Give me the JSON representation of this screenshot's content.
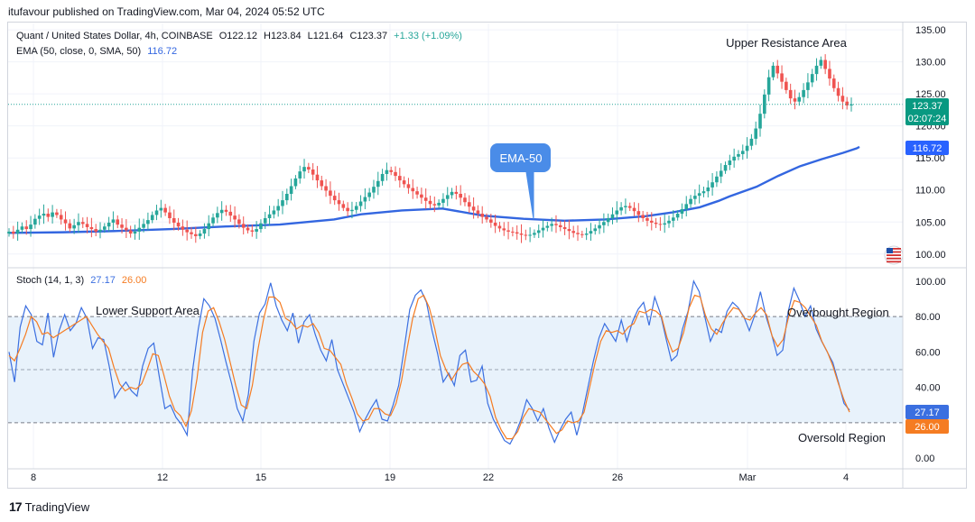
{
  "header": {
    "published": "itufavour published on TradingView.com, Mar 04, 2024 05:52 UTC"
  },
  "legend": {
    "symbol": "Quant / United States Dollar, 4h, COINBASE",
    "open": "O122.12",
    "high": "H123.84",
    "low": "L121.64",
    "close": "C123.37",
    "change": "+1.33 (+1.09%)",
    "ema_label": "EMA (50, close, 0, SMA, 50)",
    "ema_value": "116.72",
    "stoch_label": "Stoch (14, 1, 3)",
    "stoch_k": "27.17",
    "stoch_d": "26.00"
  },
  "annotations": {
    "upper_resistance": "Upper Resistance Area",
    "ema_callout": "EMA-50",
    "lower_support": "Lower Support Area",
    "overbought": "Overbought Region",
    "oversold": "Oversold Region"
  },
  "price_badges": {
    "last": "123.37",
    "countdown": "02:07:24",
    "ema": "116.72",
    "k": "27.17",
    "d": "26.00"
  },
  "footer": {
    "brand": "TradingView",
    "logo": "17"
  },
  "colors": {
    "up": "#26a69a",
    "down": "#ef5350",
    "ema": "#3366e0",
    "k": "#3b6fe0",
    "d": "#f57c22",
    "band": "#e8f2fb"
  },
  "chart_data": [
    {
      "type": "candlestick",
      "title": "Quant / United States Dollar, 4h, COINBASE",
      "x_ticks": [
        "8",
        "12",
        "15",
        "19",
        "22",
        "26",
        "Mar",
        "4"
      ],
      "y_ticks": [
        "100.00",
        "105.00",
        "110.00",
        "115.00",
        "120.00",
        "125.00",
        "130.00",
        "135.00"
      ],
      "ylim": [
        98,
        136
      ],
      "last_close": 123.37,
      "ema50_last": 116.72,
      "ema50_path": [
        [
          0,
          103.3
        ],
        [
          20,
          103.4
        ],
        [
          40,
          103.6
        ],
        [
          60,
          103.9
        ],
        [
          80,
          104.3
        ],
        [
          100,
          104.6
        ],
        [
          120,
          105.4
        ],
        [
          130,
          106.2
        ],
        [
          145,
          106.8
        ],
        [
          160,
          107.1
        ],
        [
          175,
          106.0
        ],
        [
          190,
          105.5
        ],
        [
          205,
          105.2
        ],
        [
          220,
          105.4
        ],
        [
          235,
          105.9
        ],
        [
          245,
          106.5
        ],
        [
          255,
          107.3
        ],
        [
          262,
          108.3
        ],
        [
          266,
          109.0
        ],
        [
          276,
          110.5
        ],
        [
          284,
          112.2
        ],
        [
          292,
          113.7
        ],
        [
          300,
          114.8
        ],
        [
          308,
          115.8
        ],
        [
          313,
          116.5
        ],
        [
          314,
          116.72
        ]
      ],
      "closes": [
        103.5,
        103.2,
        103.8,
        104.3,
        103.9,
        104.6,
        105.5,
        106.0,
        106.3,
        105.8,
        106.5,
        106.1,
        105.4,
        104.8,
        104.0,
        104.5,
        105.0,
        104.7,
        104.2,
        103.9,
        103.5,
        103.8,
        104.3,
        104.9,
        105.4,
        104.6,
        104.1,
        103.7,
        103.2,
        103.5,
        104.1,
        104.7,
        105.3,
        106.1,
        106.8,
        107.2,
        106.5,
        105.6,
        104.9,
        104.3,
        103.8,
        103.4,
        103.1,
        102.8,
        103.2,
        103.9,
        104.8,
        105.7,
        106.4,
        106.9,
        106.6,
        106.0,
        105.4,
        104.7,
        104.1,
        103.7,
        103.5,
        103.9,
        104.8,
        105.6,
        106.2,
        106.8,
        107.5,
        108.4,
        109.4,
        110.6,
        111.8,
        112.9,
        113.6,
        113.2,
        112.4,
        111.5,
        110.6,
        109.9,
        109.1,
        108.4,
        107.8,
        107.2,
        106.7,
        106.9,
        107.5,
        108.2,
        108.9,
        109.6,
        110.5,
        111.4,
        112.5,
        113.1,
        112.8,
        112.2,
        111.5,
        110.9,
        110.3,
        109.8,
        109.3,
        108.8,
        108.3,
        107.8,
        107.6,
        108.0,
        108.6,
        109.2,
        109.7,
        109.4,
        108.8,
        108.1,
        107.4,
        106.8,
        106.3,
        105.8,
        105.4,
        104.9,
        104.4,
        104.0,
        103.7,
        103.5,
        103.4,
        103.2,
        103.0,
        102.9,
        103.0,
        103.3,
        103.7,
        104.1,
        104.4,
        104.7,
        104.5,
        104.2,
        103.9,
        103.6,
        103.3,
        103.1,
        103.0,
        103.2,
        103.6,
        104.0,
        104.5,
        105.0,
        105.6,
        106.2,
        106.8,
        107.3,
        107.5,
        107.2,
        106.7,
        106.1,
        105.6,
        105.2,
        104.9,
        104.7,
        104.6,
        104.8,
        105.2,
        105.7,
        106.3,
        107.0,
        107.8,
        108.6,
        109.1,
        109.5,
        109.8,
        110.4,
        111.2,
        112.1,
        113.0,
        113.9,
        114.6,
        115.2,
        115.6,
        116.1,
        116.9,
        118.0,
        119.6,
        121.9,
        124.9,
        127.6,
        129.4,
        128.2,
        126.9,
        125.6,
        124.3,
        123.8,
        124.5,
        125.6,
        126.8,
        128.1,
        129.4,
        130.3,
        128.9,
        127.4,
        125.9,
        124.7,
        123.8,
        123.2,
        123.37
      ]
    },
    {
      "type": "line",
      "title": "Stoch (14, 1, 3)",
      "y_ticks": [
        "0.00",
        "20.00",
        "40.00",
        "60.00",
        "80.00",
        "100.00"
      ],
      "ylim": [
        -6,
        106
      ],
      "bands": {
        "lower": 20,
        "middle": 50,
        "upper": 80
      },
      "x_ticks": [
        "8",
        "12",
        "15",
        "19",
        "22",
        "26",
        "Mar",
        "4"
      ],
      "series": [
        {
          "name": "%K",
          "last": 27.17,
          "values": [
            60,
            43,
            74,
            86,
            81,
            66,
            64,
            82,
            57,
            72,
            81,
            72,
            76,
            85,
            79,
            62,
            68,
            67,
            52,
            34,
            39,
            43,
            38,
            35,
            52,
            62,
            65,
            46,
            28,
            30,
            23,
            19,
            13,
            50,
            73,
            90,
            86,
            79,
            67,
            54,
            42,
            28,
            21,
            36,
            66,
            82,
            87,
            99,
            86,
            78,
            72,
            82,
            65,
            77,
            81,
            70,
            61,
            55,
            67,
            50,
            42,
            34,
            26,
            15,
            22,
            28,
            33,
            22,
            21,
            30,
            41,
            62,
            84,
            92,
            95,
            88,
            72,
            59,
            43,
            48,
            41,
            58,
            61,
            43,
            44,
            52,
            31,
            22,
            16,
            10,
            8,
            14,
            22,
            33,
            28,
            21,
            28,
            17,
            9,
            16,
            22,
            26,
            13,
            25,
            40,
            55,
            68,
            76,
            71,
            66,
            78,
            66,
            77,
            84,
            88,
            75,
            91,
            82,
            68,
            55,
            58,
            73,
            83,
            100,
            94,
            80,
            66,
            73,
            71,
            83,
            88,
            85,
            80,
            72,
            81,
            94,
            80,
            70,
            58,
            61,
            83,
            96,
            89,
            80,
            86,
            73,
            66,
            60,
            54,
            43,
            31,
            27.17
          ]
        },
        {
          "name": "%D",
          "last": 26.0,
          "values": [
            58,
            55,
            62,
            70,
            80,
            77,
            70,
            71,
            68,
            70,
            72,
            74,
            76,
            78,
            80,
            75,
            70,
            66,
            62,
            51,
            42,
            38,
            40,
            39,
            42,
            50,
            59,
            58,
            47,
            35,
            27,
            24,
            18,
            27,
            45,
            71,
            83,
            85,
            77,
            67,
            54,
            41,
            30,
            28,
            41,
            61,
            78,
            91,
            91,
            88,
            79,
            77,
            73,
            75,
            74,
            76,
            71,
            62,
            61,
            57,
            53,
            42,
            34,
            25,
            21,
            22,
            28,
            28,
            25,
            24,
            31,
            44,
            62,
            79,
            90,
            92,
            85,
            73,
            58,
            50,
            44,
            49,
            53,
            54,
            49,
            46,
            42,
            35,
            23,
            16,
            11,
            11,
            15,
            23,
            28,
            27,
            26,
            22,
            18,
            14,
            16,
            21,
            20,
            21,
            26,
            40,
            54,
            66,
            72,
            71,
            72,
            70,
            74,
            76,
            83,
            82,
            84,
            83,
            80,
            68,
            60,
            62,
            71,
            85,
            92,
            91,
            80,
            73,
            70,
            76,
            81,
            85,
            84,
            79,
            78,
            82,
            85,
            81,
            69,
            63,
            67,
            80,
            89,
            88,
            85,
            80,
            75,
            66,
            60,
            52,
            42,
            33,
            26.0
          ]
        }
      ]
    }
  ]
}
